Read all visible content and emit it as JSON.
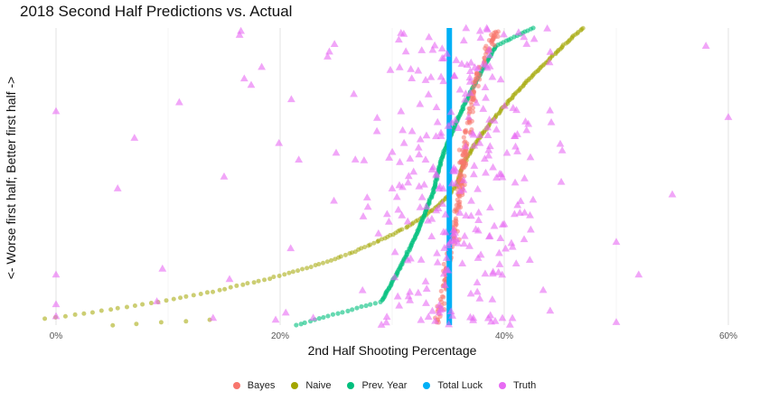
{
  "chart_data": {
    "type": "scatter",
    "title": "2018 Second Half Predictions vs. Actual",
    "xlabel": "2nd Half Shooting Percentage",
    "ylabel": "<- Worse first half; Better first half ->",
    "xlim": [
      -0.005,
      0.605
    ],
    "x_ticks": [
      0,
      0.2,
      0.4,
      0.6
    ],
    "x_tick_labels": [
      "0%",
      "20%",
      "40%",
      "60%"
    ],
    "y_axis": "rank of first-half shooting percentage (no tick labels)",
    "grid": true,
    "legend_position": "bottom",
    "total_luck_value": 0.351,
    "series": [
      {
        "name": "Bayes",
        "color": "#F8766D",
        "marker": "circle",
        "description": "Shrunk predictions; S-curve concentrated between ~34.5% and ~39%"
      },
      {
        "name": "Naive",
        "color": "#A3A500",
        "marker": "circle",
        "description": "First-half percentage carried forward; curve from ~5% (bottom) to ~48% (top)"
      },
      {
        "name": "Prev. Year",
        "color": "#00BF7D",
        "marker": "circle",
        "description": "Previous-season percentage; S-curve from ~23% (bottom) to ~39% (top)"
      },
      {
        "name": "Total Luck",
        "color": "#00B0F6",
        "marker": "line",
        "description": "League-average constant at ~35.1%"
      },
      {
        "name": "Truth",
        "color": "#E76BF3",
        "marker": "triangle",
        "description": "Actual second-half shooting percentages, widely scattered from 0% to ~60%"
      }
    ],
    "truth_points_sample": [
      [
        0.0,
        0.72
      ],
      [
        0.0,
        0.17
      ],
      [
        0.0,
        0.07
      ],
      [
        0.0,
        0.03
      ],
      [
        0.055,
        0.46
      ],
      [
        0.07,
        0.63
      ],
      [
        0.09,
        0.08
      ],
      [
        0.095,
        0.19
      ],
      [
        0.11,
        0.75
      ],
      [
        0.15,
        0.5
      ],
      [
        0.165,
        0.99
      ],
      [
        0.168,
        0.83
      ],
      [
        0.21,
        0.76
      ],
      [
        0.25,
        0.58
      ],
      [
        0.3,
        0.46
      ],
      [
        0.4,
        0.34
      ],
      [
        0.45,
        0.61
      ],
      [
        0.5,
        0.28
      ],
      [
        0.52,
        0.17
      ],
      [
        0.55,
        0.44
      ],
      [
        0.58,
        0.94
      ],
      [
        0.6,
        0.7
      ],
      [
        0.5,
        0.01
      ]
    ]
  }
}
